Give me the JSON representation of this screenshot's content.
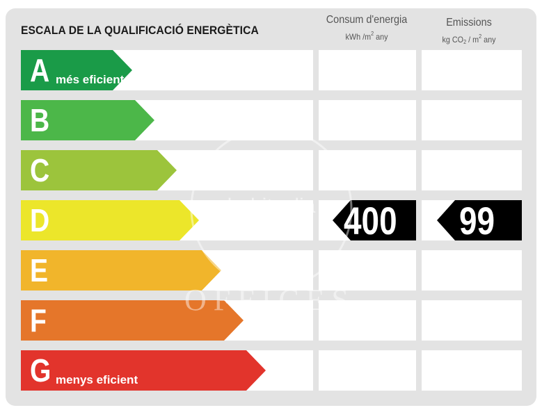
{
  "title": "ESCALA DE LA QUALIFICACIÓ ENERGÈTICA",
  "columns": {
    "consumption": {
      "label": "Consum d'energia",
      "unit_a": "kWh /m",
      "unit_exp": "2",
      "unit_b": " any"
    },
    "emissions": {
      "label": "Emissions",
      "unit_a": "kg CO",
      "unit_sub": "2",
      "unit_b": " / m",
      "unit_exp": "2",
      "unit_c": " any"
    }
  },
  "grades": [
    {
      "letter": "A",
      "text": "més eficient",
      "color": "#1a9b48"
    },
    {
      "letter": "B",
      "text": "",
      "color": "#4cb749"
    },
    {
      "letter": "C",
      "text": "",
      "color": "#9cc43c"
    },
    {
      "letter": "D",
      "text": "",
      "color": "#ece62a"
    },
    {
      "letter": "E",
      "text": "",
      "color": "#f1b52b"
    },
    {
      "letter": "F",
      "text": "",
      "color": "#e5762a"
    },
    {
      "letter": "G",
      "text": "menys eficient",
      "color": "#e2342c"
    }
  ],
  "rating": {
    "grade": "D",
    "consumption": "400",
    "emissions": "99"
  },
  "watermark": {
    "brand": "habitaclia",
    "sub": "OFFICES"
  }
}
